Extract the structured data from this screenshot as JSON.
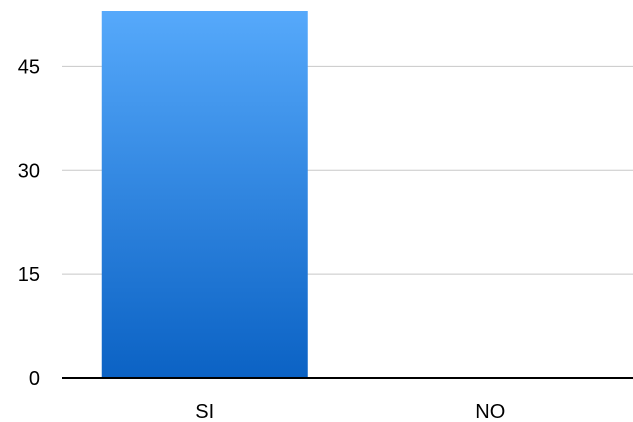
{
  "chart_data": {
    "type": "bar",
    "categories": [
      "SI",
      "NO"
    ],
    "values": [
      53,
      0
    ],
    "ylim": [
      0,
      53
    ],
    "yticks": [
      "0",
      "15",
      "30",
      "45"
    ],
    "ytick_values": [
      0,
      15,
      30,
      45
    ],
    "grid": true,
    "legend": "none",
    "colors": {
      "bar_top": "#56a9fb",
      "bar_bottom": "#0b62c4",
      "grid": "#c8c8c8",
      "axis": "#000000"
    }
  }
}
